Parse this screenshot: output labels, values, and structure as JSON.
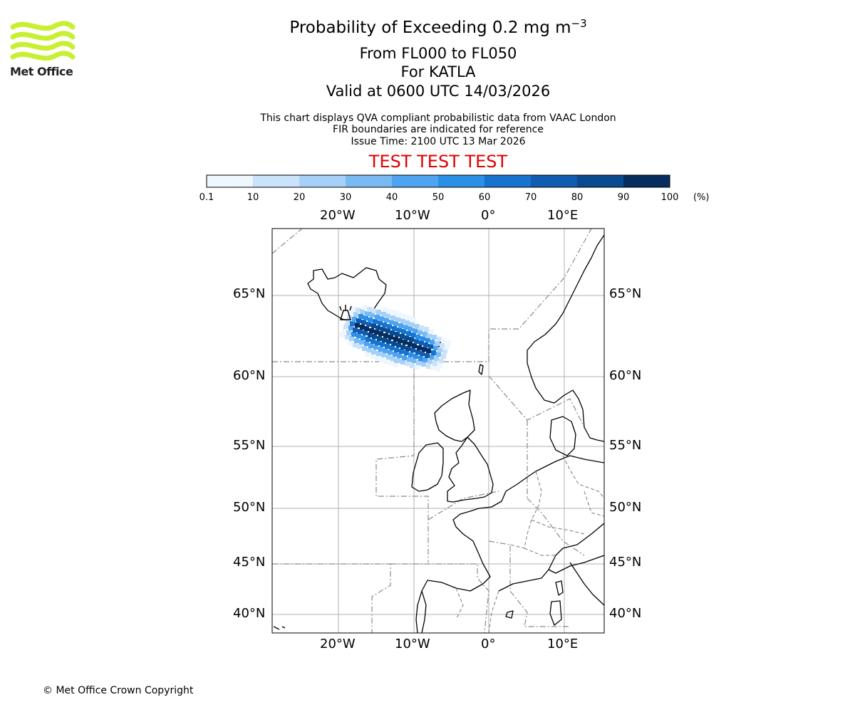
{
  "header": {
    "title_prefix": "Probability of Exceeding 0.2 mg m",
    "title_exponent": "−3",
    "level_range": "From FL000 to FL050",
    "volcano_line": "For KATLA",
    "valid_line": "Valid at 0600 UTC 14/03/2026",
    "info_line1": "This chart displays QVA compliant probabilistic data from VAAC London",
    "info_line2": "FIR boundaries are indicated for reference",
    "info_line3": "Issue Time: 2100 UTC 13 Mar 2026",
    "test_banner": "TEST TEST TEST"
  },
  "logo": {
    "text": "Met Office",
    "color": "#c8f032"
  },
  "colorbar": {
    "ticks": [
      "0.1",
      "10",
      "20",
      "30",
      "40",
      "50",
      "60",
      "70",
      "80",
      "90",
      "100"
    ],
    "unit": "(%)",
    "colors": [
      "#eef6fe",
      "#cae2fa",
      "#a6d0f7",
      "#79baf3",
      "#4ea4f0",
      "#2b8fe6",
      "#1873cf",
      "#0f5cb0",
      "#0a4a8f",
      "#062d5e"
    ]
  },
  "map": {
    "top_lon_labels": [
      "20°W",
      "10°W",
      "0°",
      "10°E"
    ],
    "bottom_lon_labels": [
      "20°W",
      "10°W",
      "0°",
      "10°E"
    ],
    "left_lat_labels": [
      "65°N",
      "60°N",
      "55°N",
      "50°N",
      "45°N",
      "40°N"
    ],
    "right_lat_labels": [
      "65°N",
      "60°N",
      "55°N",
      "50°N",
      "45°N",
      "40°N"
    ],
    "volcano": "KATLA",
    "plume_probability_peak_percent": 100
  },
  "footer": {
    "copyright": "© Met Office Crown Copyright"
  }
}
